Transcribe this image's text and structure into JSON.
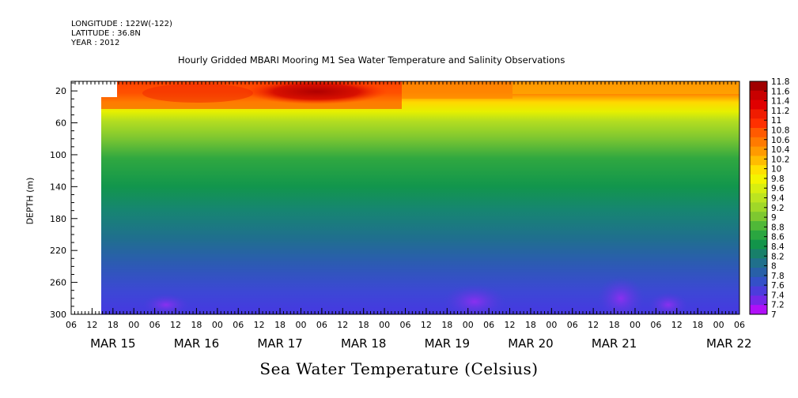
{
  "meta": {
    "longitude": "LONGITUDE : 122W(-122)",
    "latitude": "LATITUDE : 36.8N",
    "year": "YEAR : 2012"
  },
  "chart_data": {
    "type": "heatmap",
    "title": "Hourly Gridded MBARI Mooring M1 Sea Water Temperature and Salinity Observations",
    "xlabel": "Sea Water Temperature (Celsius)",
    "ylabel": "DEPTH (m)",
    "y_ticks": [
      "20",
      "60",
      "100",
      "140",
      "180",
      "220",
      "260",
      "300"
    ],
    "y_range": [
      8,
      300
    ],
    "hour_ticks": [
      "06",
      "12",
      "18",
      "00",
      "06",
      "12",
      "18",
      "00",
      "06",
      "12",
      "18",
      "00",
      "06",
      "12",
      "18",
      "00",
      "06",
      "12",
      "18",
      "00",
      "06",
      "12",
      "18",
      "00",
      "06",
      "12",
      "18",
      "00",
      "06",
      "12",
      "18",
      "00",
      "06"
    ],
    "date_labels": [
      "MAR 15",
      "MAR 16",
      "MAR 17",
      "MAR 18",
      "MAR 19",
      "MAR 20",
      "MAR 21",
      "MAR 22"
    ],
    "colorbar_labels": [
      "11.8",
      "11.6",
      "11.4",
      "11.2",
      "11",
      "10.8",
      "10.6",
      "10.4",
      "10.2",
      "10",
      "9.8",
      "9.6",
      "9.4",
      "9.2",
      "9",
      "8.8",
      "8.6",
      "8.4",
      "8.2",
      "8",
      "7.8",
      "7.6",
      "7.4",
      "7.2",
      "7"
    ],
    "colorbar_colors": [
      "#a00000",
      "#c80000",
      "#e00000",
      "#f01c00",
      "#ff3000",
      "#ff5a00",
      "#ff7a00",
      "#ff9a00",
      "#ffbc00",
      "#ffe000",
      "#f4f400",
      "#d8ee10",
      "#bce420",
      "#a0d828",
      "#7ec830",
      "#50b838",
      "#2aa640",
      "#12944a",
      "#18806a",
      "#20708c",
      "#2860a8",
      "#3450c8",
      "#4c3cdc",
      "#7428e8",
      "#b010f8"
    ]
  }
}
